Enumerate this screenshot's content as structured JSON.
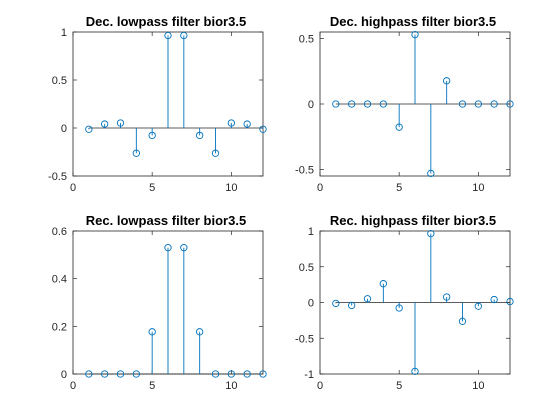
{
  "figure": {
    "background": "#ffffff",
    "stem_color": "#0072bd"
  },
  "chart_data": [
    {
      "type": "stem",
      "title": "Dec. lowpass filter bior3.5",
      "x": [
        1,
        2,
        3,
        4,
        5,
        6,
        7,
        8,
        9,
        10,
        11,
        12
      ],
      "values": [
        -0.013,
        0.041,
        0.052,
        -0.263,
        -0.077,
        0.963,
        0.963,
        -0.077,
        -0.263,
        0.052,
        0.041,
        -0.013
      ],
      "xlim": [
        0,
        12
      ],
      "ylim": [
        -0.5,
        1
      ],
      "xticks": [
        0,
        5,
        10
      ],
      "yticks": [
        -0.5,
        0,
        0.5,
        1
      ],
      "xtick_labels": [
        "0",
        "5",
        "10"
      ],
      "ytick_labels": [
        "-0.5",
        "0",
        "0.5",
        "1"
      ],
      "baseline": 0,
      "marker": "circle",
      "grid": false
    },
    {
      "type": "stem",
      "title": "Dec. highpass filter bior3.5",
      "x": [
        1,
        2,
        3,
        4,
        5,
        6,
        7,
        8,
        9,
        10,
        11,
        12
      ],
      "values": [
        0,
        0,
        0,
        0,
        -0.177,
        0.53,
        -0.53,
        0.177,
        0,
        0,
        0,
        0
      ],
      "xlim": [
        0,
        12
      ],
      "ylim": [
        -0.55,
        0.55
      ],
      "xticks": [
        0,
        5,
        10
      ],
      "yticks": [
        -0.5,
        0,
        0.5
      ],
      "xtick_labels": [
        "0",
        "5",
        "10"
      ],
      "ytick_labels": [
        "-0.5",
        "0",
        "0.5"
      ],
      "baseline": 0,
      "marker": "circle",
      "grid": false
    },
    {
      "type": "stem",
      "title": "Rec. lowpass filter bior3.5",
      "x": [
        1,
        2,
        3,
        4,
        5,
        6,
        7,
        8,
        9,
        10,
        11,
        12
      ],
      "values": [
        0,
        0,
        0,
        0,
        0.177,
        0.53,
        0.53,
        0.177,
        0,
        0,
        0,
        0
      ],
      "xlim": [
        0,
        12
      ],
      "ylim": [
        0,
        0.6
      ],
      "xticks": [
        0,
        5,
        10
      ],
      "yticks": [
        0,
        0.2,
        0.4,
        0.6
      ],
      "xtick_labels": [
        "0",
        "5",
        "10"
      ],
      "ytick_labels": [
        "0",
        "0.2",
        "0.4",
        "0.6"
      ],
      "baseline": 0,
      "marker": "circle",
      "grid": false
    },
    {
      "type": "stem",
      "title": "Rec. highpass filter bior3.5",
      "x": [
        1,
        2,
        3,
        4,
        5,
        6,
        7,
        8,
        9,
        10,
        11,
        12
      ],
      "values": [
        -0.013,
        -0.041,
        0.052,
        0.263,
        -0.077,
        -0.963,
        0.963,
        0.077,
        -0.263,
        -0.052,
        0.041,
        0.013
      ],
      "xlim": [
        0,
        12
      ],
      "ylim": [
        -1,
        1
      ],
      "xticks": [
        0,
        5,
        10
      ],
      "yticks": [
        -1,
        -0.5,
        0,
        0.5,
        1
      ],
      "xtick_labels": [
        "0",
        "5",
        "10"
      ],
      "ytick_labels": [
        "-1",
        "-0.5",
        "0",
        "0.5",
        "1"
      ],
      "baseline": 0,
      "marker": "circle",
      "grid": false
    }
  ]
}
